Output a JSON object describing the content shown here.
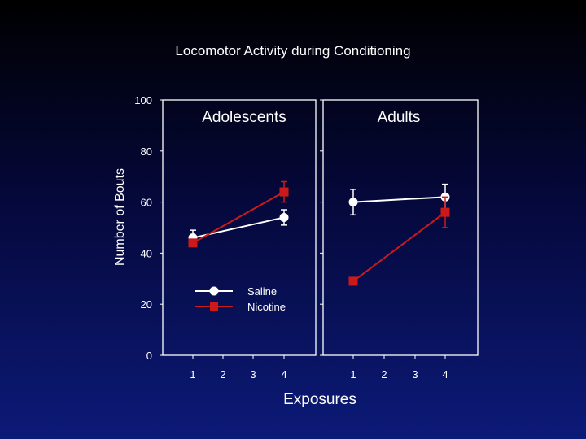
{
  "chart_data": {
    "type": "line",
    "title": "Locomotor Activity during Conditioning",
    "ylabel": "Number of Bouts",
    "xlabel": "Exposures",
    "ylim": [
      0,
      100
    ],
    "yticks": [
      0,
      20,
      40,
      60,
      80,
      100
    ],
    "categories": [
      "1",
      "2",
      "3",
      "4"
    ],
    "legend": {
      "position": "bottom-left of left panel",
      "entries": [
        "Saline",
        "Nicotine"
      ]
    },
    "panels": [
      {
        "title": "Adolescents",
        "series": [
          {
            "name": "Saline",
            "marker": "circle",
            "color": "#ffffff",
            "points": [
              {
                "x": 1,
                "y": 46,
                "err": 3
              },
              {
                "x": 4,
                "y": 54,
                "err": 3
              }
            ]
          },
          {
            "name": "Nicotine",
            "marker": "square",
            "color": "#cc1a1a",
            "points": [
              {
                "x": 1,
                "y": 44,
                "err": 1
              },
              {
                "x": 4,
                "y": 64,
                "err": 4
              }
            ]
          }
        ]
      },
      {
        "title": "Adults",
        "series": [
          {
            "name": "Saline",
            "marker": "circle",
            "color": "#ffffff",
            "points": [
              {
                "x": 1,
                "y": 60,
                "err": 5
              },
              {
                "x": 4,
                "y": 62,
                "err": 5
              }
            ]
          },
          {
            "name": "Nicotine",
            "marker": "square",
            "color": "#cc1a1a",
            "points": [
              {
                "x": 1,
                "y": 29,
                "err": 1
              },
              {
                "x": 4,
                "y": 56,
                "err": 6
              }
            ]
          }
        ]
      }
    ]
  }
}
